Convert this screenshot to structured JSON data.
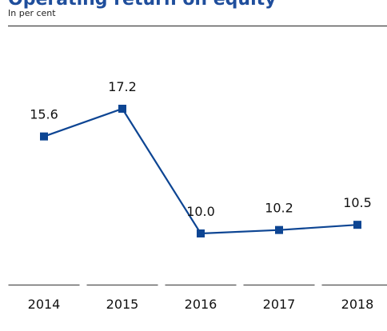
{
  "chart_data": {
    "type": "line",
    "title": "Operating return on equity",
    "subtitle": "In per cent",
    "categories": [
      "2014",
      "2015",
      "2016",
      "2017",
      "2018"
    ],
    "values": [
      15.6,
      17.2,
      10,
      10.2,
      10.5
    ],
    "value_labels": [
      "15.6",
      "17.2",
      "10.0",
      "10.2",
      "10.5"
    ],
    "color": "#0d4593"
  }
}
